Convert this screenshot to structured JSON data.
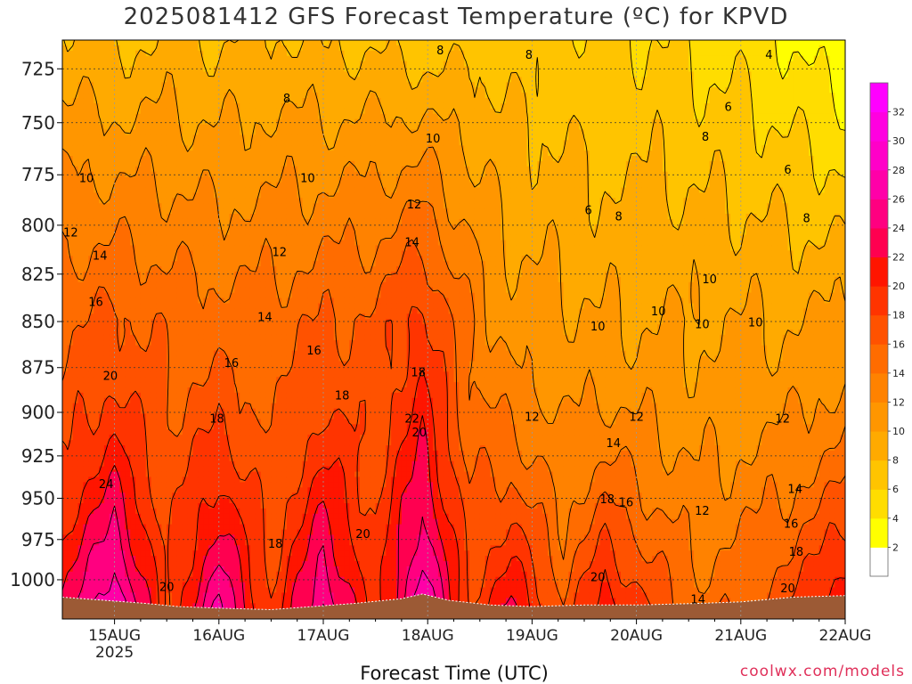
{
  "chart_data": {
    "type": "heatmap",
    "title": "2025081412 GFS Forecast Temperature (ºC) for KPVD",
    "xlabel": "Forecast Time (UTC)",
    "ylabel": "",
    "credit": "coolwx.com/models",
    "y_axis": {
      "scale": "pressure (hPa, inverted)",
      "ticks": [
        725,
        750,
        775,
        800,
        825,
        850,
        875,
        900,
        925,
        950,
        975,
        1000
      ],
      "range": [
        1025,
        712
      ]
    },
    "x_axis": {
      "ticks": [
        "15AUG",
        "16AUG",
        "17AUG",
        "18AUG",
        "19AUG",
        "20AUG",
        "21AUG",
        "22AUG"
      ],
      "first_tick_sublabel": "2025",
      "range_days": [
        14.5,
        22.0
      ]
    },
    "grid": true,
    "colorbar": {
      "levels": [
        0,
        2,
        4,
        6,
        8,
        10,
        12,
        14,
        16,
        18,
        20,
        22,
        24,
        26,
        28,
        30,
        32,
        34
      ],
      "labels": [
        "2",
        "4",
        "6",
        "8",
        "10",
        "12",
        "14",
        "16",
        "18",
        "20",
        "22",
        "24",
        "26",
        "28",
        "30",
        "32"
      ],
      "colors": [
        "#ffffff",
        "#ffff00",
        "#ffdd00",
        "#ffc400",
        "#ffaa00",
        "#ff9600",
        "#ff8200",
        "#ff6c00",
        "#ff5200",
        "#ff3400",
        "#ff1500",
        "#ff0050",
        "#ff0080",
        "#ff00a8",
        "#ff00c8",
        "#ff00e0",
        "#ff00ff"
      ]
    },
    "temperature_profiles": [
      {
        "time": 14.5,
        "t725": 9.5,
        "t850": 15.5,
        "surface": 22.0
      },
      {
        "time": 15.0,
        "t725": 8.5,
        "t850": 16.5,
        "surface": 28.0
      },
      {
        "time": 15.5,
        "t725": 9.0,
        "t850": 15.5,
        "surface": 18.0
      },
      {
        "time": 16.0,
        "t725": 8.5,
        "t850": 15.0,
        "surface": 26.0
      },
      {
        "time": 16.5,
        "t725": 9.0,
        "t850": 15.0,
        "surface": 18.0
      },
      {
        "time": 17.0,
        "t725": 8.5,
        "t850": 16.0,
        "surface": 26.0
      },
      {
        "time": 17.5,
        "t725": 8.5,
        "t850": 16.5,
        "surface": 18.5
      },
      {
        "time": 17.95,
        "t725": 8.0,
        "t850": 19.0,
        "surface": 28.0
      },
      {
        "time": 18.4,
        "t725": 8.0,
        "t850": 14.0,
        "surface": 18.0
      },
      {
        "time": 18.8,
        "t725": 7.5,
        "t850": 11.0,
        "surface": 22.0
      },
      {
        "time": 19.3,
        "t725": 7.0,
        "t850": 10.5,
        "surface": 16.0
      },
      {
        "time": 19.7,
        "t725": 6.5,
        "t850": 10.0,
        "surface": 21.0
      },
      {
        "time": 20.2,
        "t725": 6.5,
        "t850": 10.0,
        "surface": 17.0
      },
      {
        "time": 20.6,
        "t725": 6.0,
        "t850": 10.0,
        "surface": 14.5
      },
      {
        "time": 21.1,
        "t725": 5.5,
        "t850": 10.0,
        "surface": 16.0
      },
      {
        "time": 21.5,
        "t725": 4.5,
        "t850": 10.0,
        "surface": 18.0
      },
      {
        "time": 22.0,
        "t725": 3.0,
        "t850": 10.5,
        "surface": 22.0
      }
    ],
    "contour_labels": [
      {
        "text": "8",
        "time": 18.12,
        "p": 717
      },
      {
        "text": "8",
        "time": 18.97,
        "p": 719
      },
      {
        "text": "4",
        "time": 21.27,
        "p": 719
      },
      {
        "text": "8",
        "time": 16.65,
        "p": 739
      },
      {
        "text": "6",
        "time": 20.88,
        "p": 743
      },
      {
        "text": "8",
        "time": 20.66,
        "p": 757
      },
      {
        "text": "10",
        "time": 14.73,
        "p": 777
      },
      {
        "text": "10",
        "time": 16.85,
        "p": 777
      },
      {
        "text": "10",
        "time": 18.05,
        "p": 758
      },
      {
        "text": "6",
        "time": 21.45,
        "p": 773
      },
      {
        "text": "12",
        "time": 17.87,
        "p": 790
      },
      {
        "text": "6",
        "time": 19.54,
        "p": 793
      },
      {
        "text": "8",
        "time": 19.83,
        "p": 796
      },
      {
        "text": "8",
        "time": 21.63,
        "p": 797
      },
      {
        "text": "12",
        "time": 14.58,
        "p": 804
      },
      {
        "text": "14",
        "time": 14.86,
        "p": 816
      },
      {
        "text": "12",
        "time": 16.58,
        "p": 814
      },
      {
        "text": "14",
        "time": 17.85,
        "p": 809
      },
      {
        "text": "10",
        "time": 20.7,
        "p": 828
      },
      {
        "text": "16",
        "time": 14.82,
        "p": 840
      },
      {
        "text": "14",
        "time": 16.44,
        "p": 848
      },
      {
        "text": "10",
        "time": 20.21,
        "p": 845
      },
      {
        "text": "10",
        "time": 19.63,
        "p": 853
      },
      {
        "text": "10",
        "time": 20.63,
        "p": 852
      },
      {
        "text": "10",
        "time": 21.14,
        "p": 851
      },
      {
        "text": "16",
        "time": 16.12,
        "p": 873
      },
      {
        "text": "16",
        "time": 16.91,
        "p": 866
      },
      {
        "text": "18",
        "time": 17.91,
        "p": 878
      },
      {
        "text": "20",
        "time": 14.96,
        "p": 880
      },
      {
        "text": "18",
        "time": 17.18,
        "p": 891
      },
      {
        "text": "18",
        "time": 15.98,
        "p": 904
      },
      {
        "text": "12",
        "time": 19.0,
        "p": 903
      },
      {
        "text": "12",
        "time": 20.0,
        "p": 903
      },
      {
        "text": "12",
        "time": 21.4,
        "p": 904
      },
      {
        "text": "22",
        "time": 17.85,
        "p": 904
      },
      {
        "text": "20",
        "time": 17.92,
        "p": 912
      },
      {
        "text": "14",
        "time": 19.78,
        "p": 918
      },
      {
        "text": "24",
        "time": 14.92,
        "p": 942
      },
      {
        "text": "18",
        "time": 19.72,
        "p": 951
      },
      {
        "text": "16",
        "time": 19.9,
        "p": 953
      },
      {
        "text": "14",
        "time": 21.52,
        "p": 945
      },
      {
        "text": "12",
        "time": 20.63,
        "p": 958
      },
      {
        "text": "20",
        "time": 17.38,
        "p": 972
      },
      {
        "text": "18",
        "time": 16.54,
        "p": 978
      },
      {
        "text": "16",
        "time": 21.48,
        "p": 966
      },
      {
        "text": "18",
        "time": 21.53,
        "p": 983
      },
      {
        "text": "20",
        "time": 19.63,
        "p": 999
      },
      {
        "text": "20",
        "time": 15.5,
        "p": 1005
      },
      {
        "text": "20",
        "time": 21.45,
        "p": 1006
      },
      {
        "text": "14",
        "time": 20.59,
        "p": 1013
      }
    ],
    "terrain_color": "#9c5a35",
    "background_temperature_note": ""
  }
}
